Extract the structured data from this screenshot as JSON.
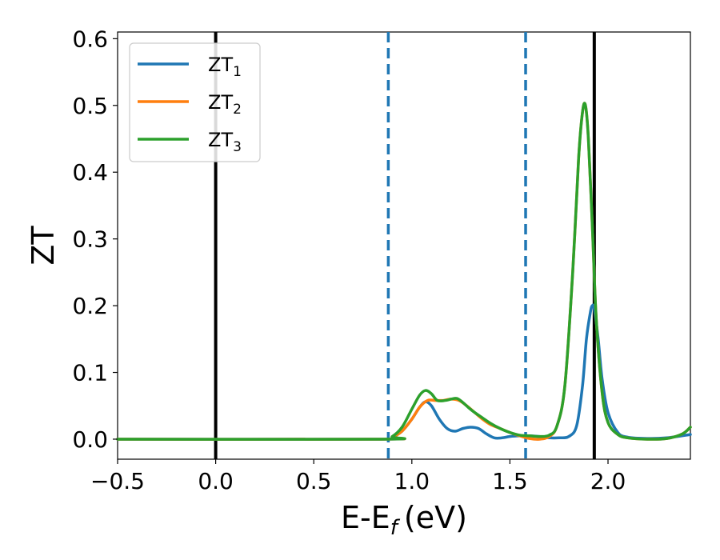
{
  "chart_data": {
    "type": "line",
    "xlabel": "E-E",
    "xlabel_subscript": "f",
    "xlabel_unit": "(eV)",
    "ylabel": "ZT",
    "xlim": [
      -0.5,
      2.42
    ],
    "ylim": [
      -0.03,
      0.61
    ],
    "x_ticks": [
      -0.5,
      0.0,
      0.5,
      1.0,
      1.5,
      2.0
    ],
    "x_tick_labels": [
      "−0.5",
      "0.0",
      "0.5",
      "1.0",
      "1.5",
      "2.0"
    ],
    "y_ticks": [
      0.0,
      0.1,
      0.2,
      0.3,
      0.4,
      0.5,
      0.6
    ],
    "y_tick_labels": [
      "0.0",
      "0.1",
      "0.2",
      "0.3",
      "0.4",
      "0.5",
      "0.6"
    ],
    "grid": false,
    "legend_position": "top-left",
    "vertical_lines": [
      {
        "x": 0.0,
        "style": "solid",
        "color": "#000000"
      },
      {
        "x": 0.88,
        "style": "dashed",
        "color": "#1f77b4"
      },
      {
        "x": 1.58,
        "style": "dashed",
        "color": "#1f77b4"
      },
      {
        "x": 1.93,
        "style": "solid",
        "color": "#000000"
      }
    ],
    "series": [
      {
        "name": "ZT",
        "subscript": "1",
        "color": "#1f77b4",
        "x": [
          -0.5,
          0.85,
          0.9,
          0.95,
          1.0,
          1.04,
          1.07,
          1.1,
          1.14,
          1.18,
          1.22,
          1.26,
          1.3,
          1.34,
          1.38,
          1.42,
          1.46,
          1.5,
          1.55,
          1.6,
          1.65,
          1.7,
          1.75,
          1.8,
          1.84,
          1.87,
          1.89,
          1.91,
          1.92,
          1.93,
          1.95,
          1.97,
          2.0,
          2.05,
          2.1,
          2.2,
          2.3,
          2.42
        ],
        "y": [
          0.0,
          0.0,
          0.003,
          0.012,
          0.03,
          0.048,
          0.056,
          0.05,
          0.03,
          0.016,
          0.012,
          0.016,
          0.018,
          0.016,
          0.008,
          0.002,
          0.002,
          0.004,
          0.005,
          0.005,
          0.004,
          0.002,
          0.002,
          0.004,
          0.02,
          0.08,
          0.15,
          0.19,
          0.2,
          0.195,
          0.15,
          0.09,
          0.04,
          0.01,
          0.003,
          0.001,
          0.002,
          0.007
        ]
      },
      {
        "name": "ZT",
        "subscript": "2",
        "color": "#ff7f0e",
        "x": [
          -0.5,
          0.85,
          0.9,
          0.95,
          1.0,
          1.04,
          1.08,
          1.12,
          1.16,
          1.2,
          1.24,
          1.28,
          1.32,
          1.36,
          1.4,
          1.45,
          1.5,
          1.55,
          1.6,
          1.65,
          1.7,
          1.74,
          1.78,
          1.82,
          1.85,
          1.87,
          1.885,
          1.9,
          1.92,
          1.94,
          1.97,
          2.0,
          2.05,
          2.1,
          2.2,
          2.3,
          2.38,
          2.42
        ],
        "y": [
          0.0,
          0.0,
          0.003,
          0.012,
          0.03,
          0.048,
          0.058,
          0.058,
          0.058,
          0.06,
          0.058,
          0.05,
          0.04,
          0.03,
          0.022,
          0.016,
          0.01,
          0.005,
          0.001,
          0.0,
          0.004,
          0.02,
          0.08,
          0.25,
          0.42,
          0.49,
          0.5,
          0.45,
          0.32,
          0.18,
          0.07,
          0.025,
          0.007,
          0.002,
          0.0,
          0.001,
          0.008,
          0.018
        ]
      },
      {
        "name": "ZT",
        "subscript": "3",
        "color": "#2ca02c",
        "x": [
          -0.5,
          0.85,
          0.9,
          0.95,
          1.0,
          1.04,
          1.07,
          1.1,
          1.13,
          1.17,
          1.2,
          1.23,
          1.26,
          1.29,
          1.32,
          1.36,
          1.4,
          1.45,
          1.5,
          1.55,
          1.6,
          1.65,
          1.7,
          1.74,
          1.78,
          1.82,
          1.85,
          1.87,
          1.885,
          1.9,
          1.92,
          1.94,
          1.97,
          2.0,
          2.05,
          2.1,
          2.2,
          2.3,
          2.38,
          2.42
        ],
        "y": [
          0.0,
          0.0,
          0.004,
          0.018,
          0.045,
          0.066,
          0.073,
          0.068,
          0.058,
          0.058,
          0.06,
          0.061,
          0.055,
          0.047,
          0.04,
          0.032,
          0.024,
          0.016,
          0.01,
          0.006,
          0.005,
          0.004,
          0.006,
          0.02,
          0.08,
          0.25,
          0.42,
          0.49,
          0.5,
          0.45,
          0.32,
          0.18,
          0.07,
          0.025,
          0.007,
          0.002,
          0.0,
          0.001,
          0.008,
          0.018
        ]
      }
    ]
  }
}
